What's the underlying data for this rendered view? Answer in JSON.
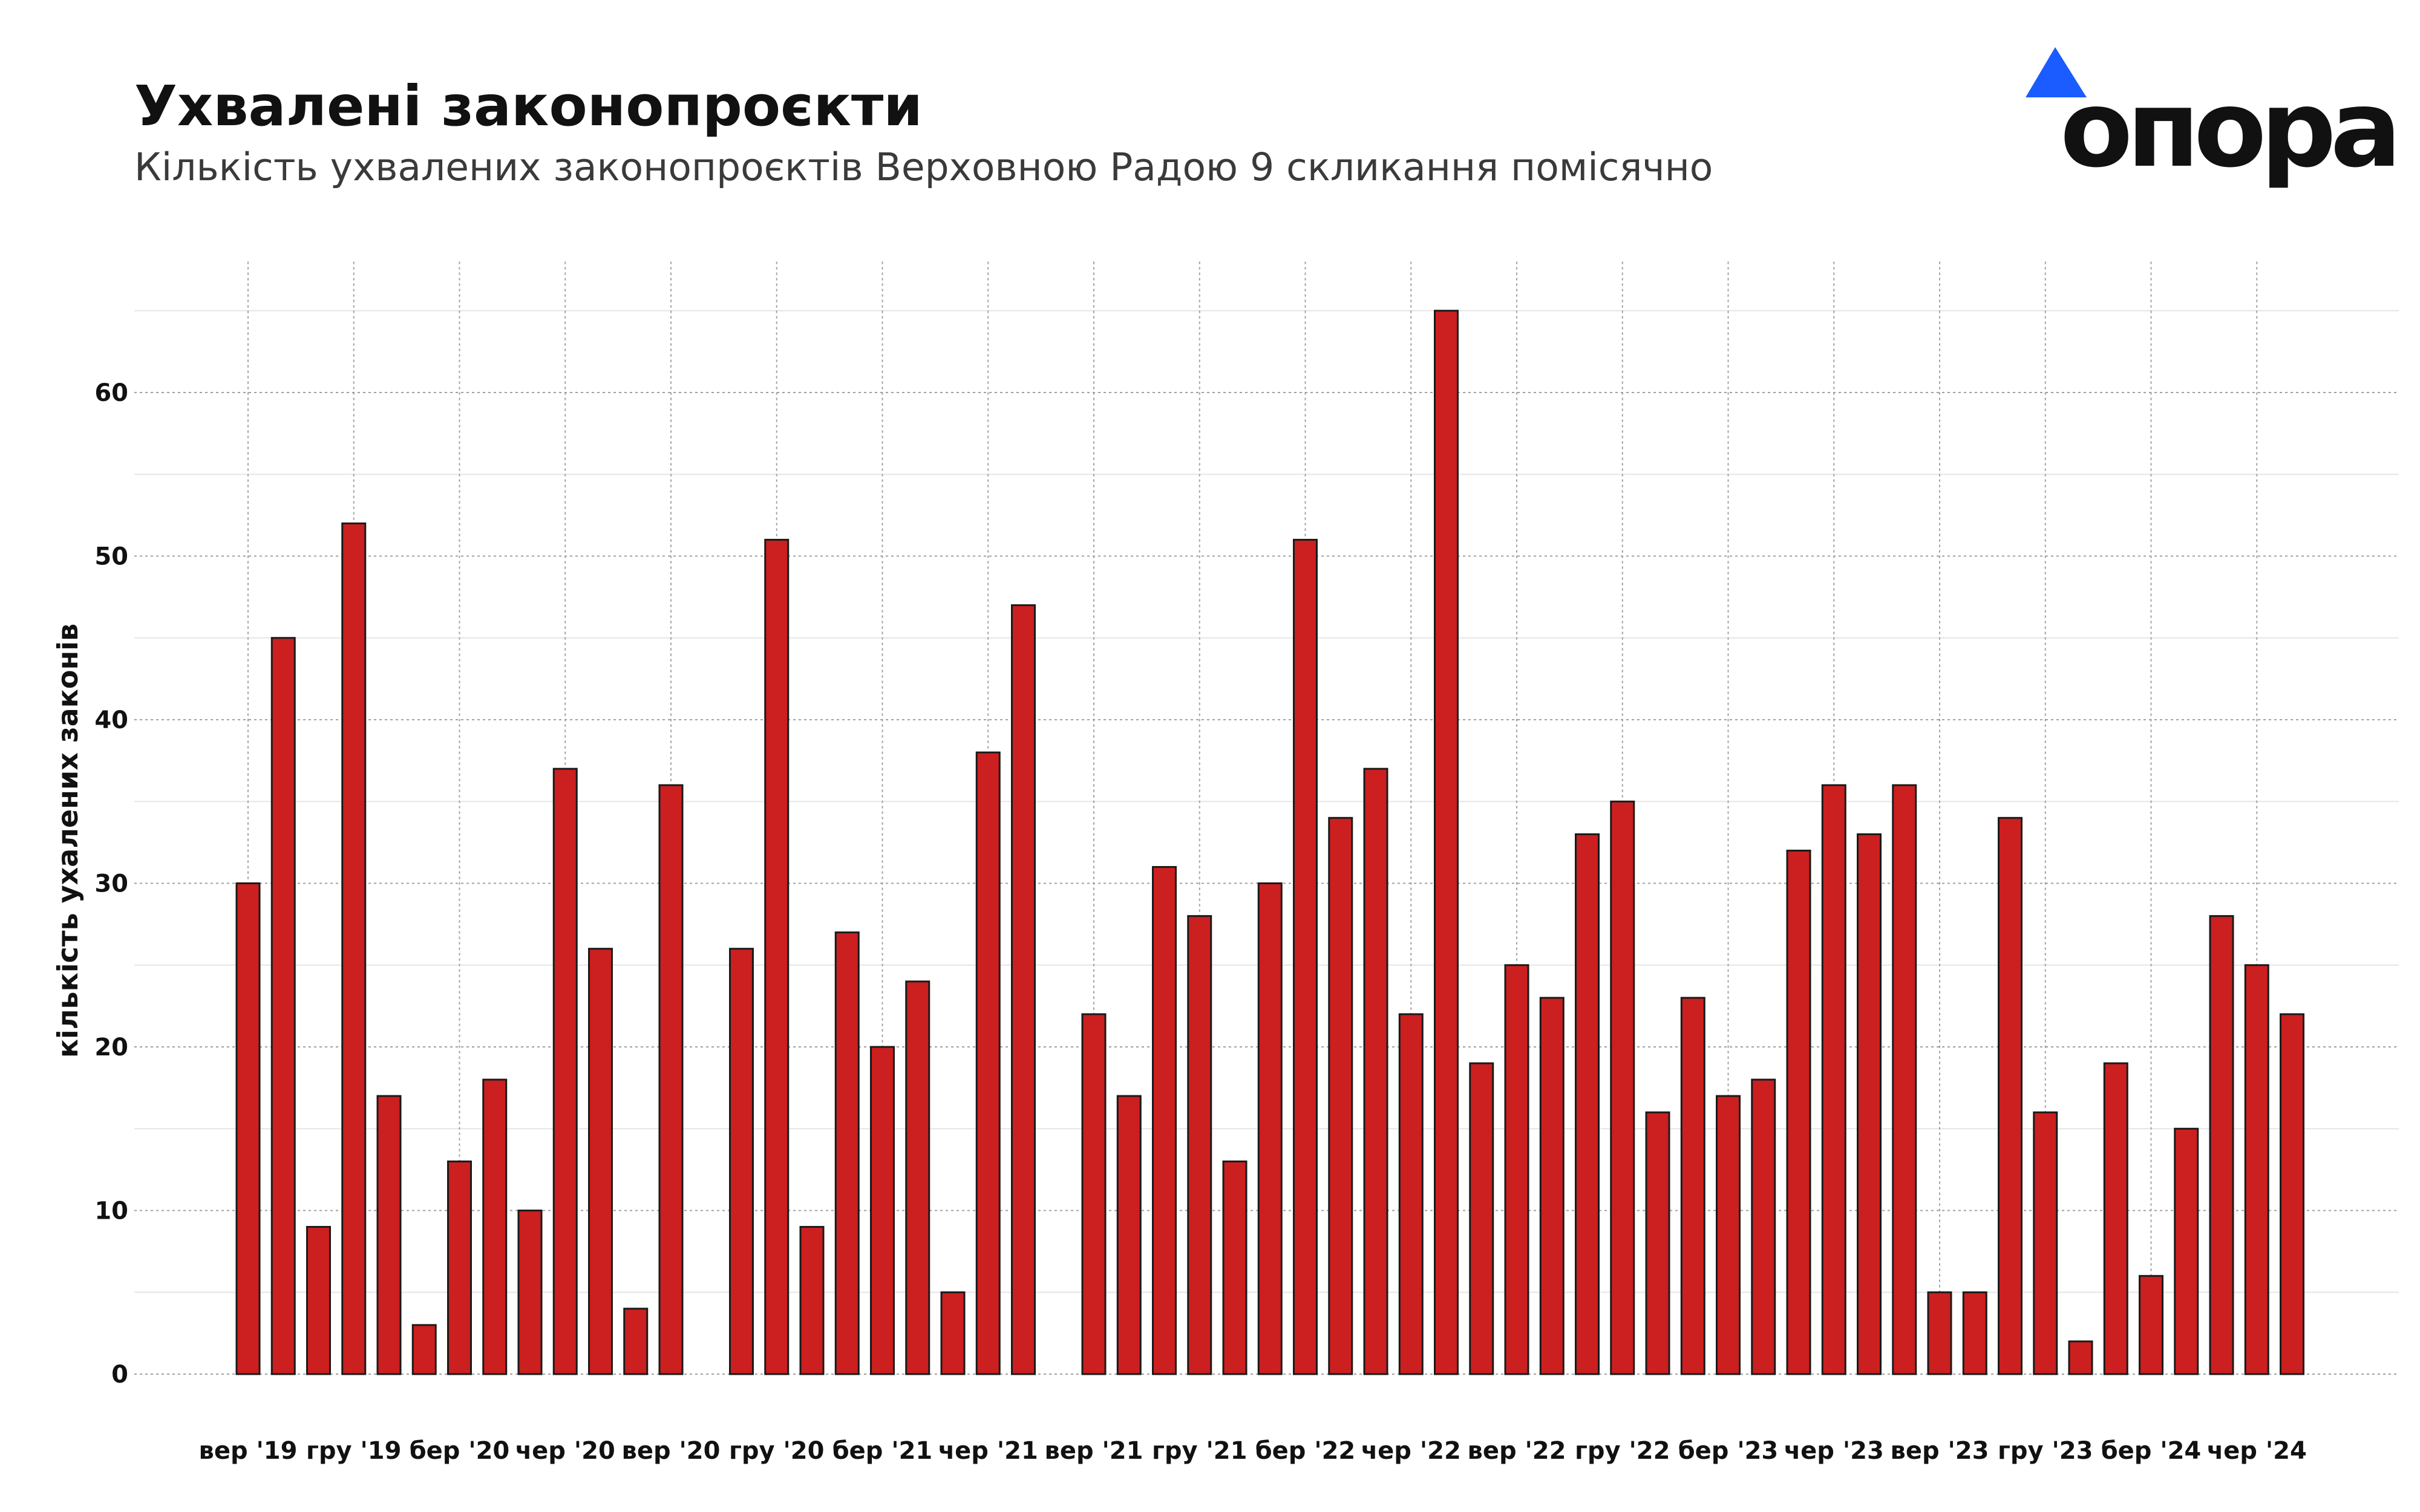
{
  "header": {
    "title": "Ухвалені законопроєкти",
    "subtitle": "Кількість ухвалених законопроєктів Верховною Радою 9 скликання помісячно"
  },
  "logo": {
    "text": "опора",
    "icon": "triangle-logo-icon",
    "accent": "#1a5cff"
  },
  "colors": {
    "bar": "#cc1f1f",
    "bar_stroke": "#1a1a1a",
    "grid": "#a0a0a0",
    "minor_grid": "#e6e6e6",
    "text": "#111111"
  },
  "chart_data": {
    "type": "bar",
    "title": "Ухвалені законопроєкти",
    "subtitle": "Кількість ухвалених законопроєктів Верховною Радою 9 скликання помісячно",
    "xlabel": "",
    "ylabel": "кількість ухалених законів",
    "ylim": [
      0,
      68
    ],
    "yticks": [
      0,
      10,
      20,
      30,
      40,
      50,
      60
    ],
    "grid": true,
    "legend": "none",
    "categories": [
      "2019-09",
      "2019-10",
      "2019-11",
      "2019-12",
      "2020-01",
      "2020-02",
      "2020-03",
      "2020-04",
      "2020-05",
      "2020-06",
      "2020-07",
      "2020-08",
      "2020-09",
      "2020-10",
      "2020-11",
      "2020-12",
      "2021-01",
      "2021-02",
      "2021-03",
      "2021-04",
      "2021-05",
      "2021-06",
      "2021-07",
      "2021-08",
      "2021-09",
      "2021-10",
      "2021-11",
      "2021-12",
      "2022-01",
      "2022-02",
      "2022-03",
      "2022-04",
      "2022-05",
      "2022-06",
      "2022-07",
      "2022-08",
      "2022-09",
      "2022-10",
      "2022-11",
      "2022-12",
      "2023-01",
      "2023-02",
      "2023-03",
      "2023-04",
      "2023-05",
      "2023-06",
      "2023-07",
      "2023-08",
      "2023-09",
      "2023-10",
      "2023-11",
      "2023-12",
      "2024-01",
      "2024-02",
      "2024-03",
      "2024-04",
      "2024-05",
      "2024-06",
      "2024-07",
      "2024-08"
    ],
    "values": [
      30,
      45,
      9,
      52,
      17,
      3,
      13,
      18,
      10,
      37,
      26,
      4,
      36,
      null,
      26,
      51,
      9,
      27,
      20,
      24,
      5,
      38,
      47,
      null,
      22,
      17,
      31,
      28,
      13,
      30,
      51,
      34,
      37,
      22,
      65,
      19,
      25,
      23,
      33,
      35,
      16,
      23,
      17,
      18,
      32,
      36,
      33,
      36,
      5,
      5,
      34,
      16,
      2,
      19,
      6,
      15,
      28,
      25,
      22,
      null
    ],
    "xticks": [
      {
        "index": 0,
        "label": "вер '19"
      },
      {
        "index": 3,
        "label": "гру '19"
      },
      {
        "index": 6,
        "label": "бер '20"
      },
      {
        "index": 9,
        "label": "чер '20"
      },
      {
        "index": 12,
        "label": "вер '20"
      },
      {
        "index": 15,
        "label": "гру '20"
      },
      {
        "index": 18,
        "label": "бер '21"
      },
      {
        "index": 21,
        "label": "чер '21"
      },
      {
        "index": 24,
        "label": "вер '21"
      },
      {
        "index": 27,
        "label": "гру '21"
      },
      {
        "index": 30,
        "label": "бер '22"
      },
      {
        "index": 33,
        "label": "чер '22"
      },
      {
        "index": 36,
        "label": "вер '22"
      },
      {
        "index": 39,
        "label": "гру '22"
      },
      {
        "index": 42,
        "label": "бер '23"
      },
      {
        "index": 45,
        "label": "чер '23"
      },
      {
        "index": 48,
        "label": "вер '23"
      },
      {
        "index": 51,
        "label": "гру '23"
      },
      {
        "index": 54,
        "label": "бер '24"
      },
      {
        "index": 57,
        "label": "чер '24"
      }
    ]
  }
}
